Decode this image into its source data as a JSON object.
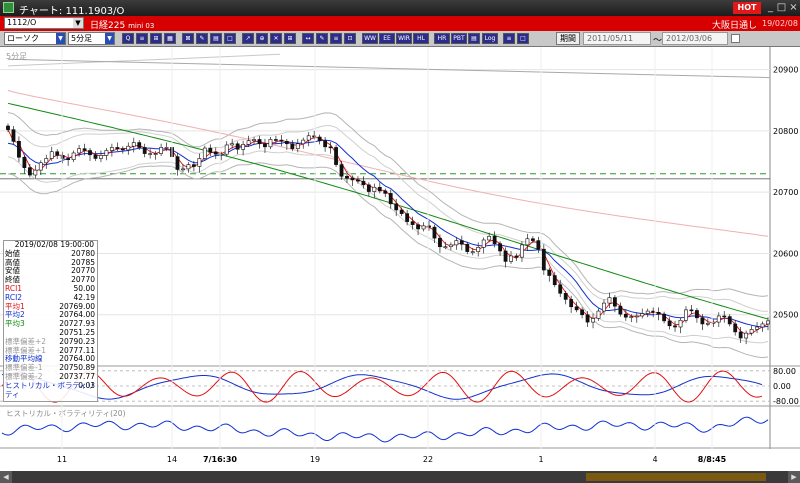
{
  "window": {
    "title": "チャート: 111.1903/O",
    "hot_label": "HOT",
    "minimize_glyph": "_",
    "maximize_glyph": "□",
    "close_glyph": "×"
  },
  "symbol_bar": {
    "symbol_input": "1112/O",
    "symbol_name": "日経225",
    "symbol_name_sub": "mini 03",
    "exchange": "大阪日通し",
    "date": "19/02/08"
  },
  "toolbar": {
    "chart_type": "ローソク",
    "interval": "5分足",
    "button_labels": [
      "Q",
      "≡",
      "⊞",
      "▦",
      "⊠",
      "✎",
      "▤",
      "□",
      "↗",
      "⊕",
      "✕",
      "⊞",
      "↔",
      "✎",
      "≡",
      "⊡",
      "WW",
      "EE",
      "WIR",
      "HL",
      "HR",
      "PBT",
      "▤",
      "Log",
      "≡",
      "□"
    ],
    "period_label": "期間",
    "range_from": "2011/05/11",
    "range_to": "2012/03/06",
    "range_separator": "～"
  },
  "chart_data": {
    "type": "candlestick",
    "interval_label": "5分足",
    "y_axis": {
      "ticks": [
        20900,
        20800,
        20700,
        20600,
        20500
      ],
      "ylim": [
        20418,
        20932
      ]
    },
    "x_axis": {
      "ticks": [
        "11",
        "14",
        "7/16:30",
        "19",
        "22",
        "1",
        "4",
        "8/8:45"
      ]
    },
    "price_series": {
      "close": [
        20802,
        20783,
        20757,
        20740,
        20728,
        20736,
        20748,
        20755,
        20766,
        20760,
        20755,
        20753,
        20764,
        20771,
        20768,
        20761,
        20755,
        20760,
        20768,
        20773,
        20771,
        20769,
        20775,
        20781,
        20773,
        20763,
        20763,
        20763,
        20773,
        20773,
        20758,
        20737,
        20738,
        20745,
        20742,
        20755,
        20772,
        20765,
        20762,
        20762,
        20777,
        20779,
        20770,
        20778,
        20784,
        20786,
        20779,
        20774,
        20786,
        20785,
        20783,
        20779,
        20771,
        20779,
        20785,
        20792,
        20790,
        20784,
        20774,
        20773,
        20745,
        20726,
        20723,
        20720,
        20718,
        20712,
        20701,
        20708,
        20702,
        20698,
        20681,
        20671,
        20665,
        20652,
        20647,
        20640,
        20645,
        20643,
        20625,
        20611,
        20611,
        20614,
        20621,
        20615,
        20603,
        20603,
        20610,
        20622,
        20628,
        20616,
        20604,
        20587,
        20596,
        20594,
        20614,
        20624,
        20621,
        20607,
        20573,
        20564,
        20549,
        20535,
        20525,
        20513,
        20508,
        20500,
        20488,
        20494,
        20506,
        20519,
        20528,
        20514,
        20501,
        20496,
        20497,
        20498,
        20502,
        20506,
        20504,
        20501,
        20490,
        20482,
        20480,
        20491,
        20508,
        20507,
        20495,
        20485,
        20486,
        20488,
        20498,
        20497,
        20485,
        20472,
        20462,
        20470,
        20476,
        20480,
        20485,
        20490
      ],
      "ma1": [
        20780,
        20778,
        20772,
        20764,
        20755,
        20749,
        20746,
        20745,
        20747,
        20748,
        20752,
        20755,
        20759,
        20761,
        20763,
        20763,
        20763,
        20763,
        20764,
        20765,
        20766,
        20767,
        20768,
        20770,
        20772,
        20772,
        20772,
        20771,
        20771,
        20770,
        20769,
        20764,
        20758,
        20752,
        20748,
        20748,
        20752,
        20757,
        20760,
        20760,
        20764,
        20769,
        20773,
        20774,
        20775,
        20778,
        20780,
        20780,
        20779,
        20779,
        20780,
        20782,
        20781,
        20780,
        20780,
        20781,
        20782,
        20784,
        20785,
        20784,
        20780,
        20772,
        20763,
        20755,
        20746,
        20738,
        20731,
        20726,
        20717,
        20710,
        20706,
        20698,
        20689,
        20681,
        20673,
        20665,
        20660,
        20655,
        20649,
        20642,
        20636,
        20631,
        20626,
        20621,
        20618,
        20615,
        20613,
        20612,
        20613,
        20614,
        20614,
        20612,
        20610,
        20608,
        20606,
        20605,
        20605,
        20606,
        20604,
        20598,
        20588,
        20580,
        20572,
        20563,
        20553,
        20540,
        20528,
        20518,
        20511,
        20507,
        20507,
        20508,
        20510,
        20508,
        20505,
        20503,
        20502,
        20500,
        20500,
        20501,
        20501,
        20498,
        20496,
        20495,
        20496,
        20498,
        20498,
        20497,
        20496,
        20493,
        20493,
        20494,
        20494,
        20491,
        20488,
        20485,
        20483,
        20481,
        20480,
        20481
      ]
    },
    "moving_averages": [
      {
        "name": "平均1",
        "start": 20866,
        "end": 20623,
        "color": "#e01010"
      },
      {
        "name": "平均2",
        "start": 20815,
        "end": 20510,
        "color": "#1030d0"
      },
      {
        "name": "平均3",
        "start": 20845,
        "end": 20505,
        "color": "#108a10"
      }
    ],
    "horizontal_line": 20730,
    "indicators": [
      {
        "name": "RCI",
        "ylim": [
          -100,
          100
        ],
        "ticks": [
          80,
          0,
          -80
        ]
      },
      {
        "name": "ヒストリカル・ボラティリティ(20)"
      }
    ]
  },
  "data_box": {
    "datetime": "2019/02/08 19:00:00",
    "rows": [
      {
        "label": "始値",
        "value": "20780",
        "color": "#000000"
      },
      {
        "label": "高値",
        "value": "20785",
        "color": "#000000"
      },
      {
        "label": "安値",
        "value": "20770",
        "color": "#000000"
      },
      {
        "label": "終値",
        "value": "20770",
        "color": "#000000"
      },
      {
        "label": "RCI1",
        "value": "50.00",
        "color": "#e01010"
      },
      {
        "label": "RCI2",
        "value": "42.19",
        "color": "#1030d0"
      },
      {
        "label": "平均1",
        "value": "20769.00",
        "color": "#e01010"
      },
      {
        "label": "平均2",
        "value": "20764.00",
        "color": "#1030d0"
      },
      {
        "label": "平均3",
        "value": "20727.93",
        "color": "#108a10"
      },
      {
        "label": "",
        "value": "20751.25",
        "color": "#000000"
      },
      {
        "label": "標準偏差+2",
        "value": "20790.23",
        "color": "#9a9a9a"
      },
      {
        "label": "標準偏差+1",
        "value": "20777.11",
        "color": "#9a9a9a"
      },
      {
        "label": "移動平均線",
        "value": "20764.00",
        "color": "#1030d0"
      },
      {
        "label": "標準偏差-1",
        "value": "20750.89",
        "color": "#9a9a9a"
      },
      {
        "label": "標準偏差-2",
        "value": "20737.77",
        "color": "#9a9a9a"
      },
      {
        "label": "ヒストリカル・ボラティリティ",
        "value": "0.03",
        "color": "#1030d0"
      }
    ]
  },
  "scrollbar": {
    "left_arrow": "◀",
    "right_arrow": "▶"
  }
}
